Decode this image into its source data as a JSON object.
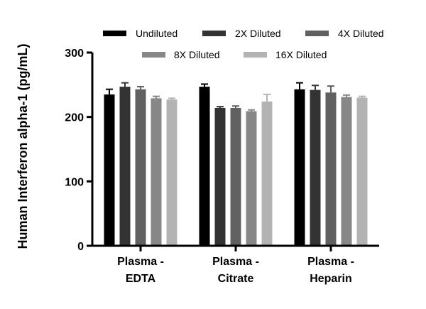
{
  "chart_data": {
    "type": "bar",
    "title": "",
    "xlabel": "",
    "ylabel": "Human Interferon alpha-1 (pg/mL)",
    "ylim": [
      0,
      300
    ],
    "yticks": [
      "0",
      "100",
      "200",
      "300"
    ],
    "categories": [
      [
        "Plasma -",
        "EDTA"
      ],
      [
        "Plasma -",
        "Citrate"
      ],
      [
        "Plasma -",
        "Heparin"
      ]
    ],
    "series": [
      {
        "name": "Undiluted",
        "color": "#000000",
        "values": [
          235,
          247,
          243
        ]
      },
      {
        "name": "2X Diluted",
        "color": "#333333",
        "values": [
          247,
          214,
          242
        ]
      },
      {
        "name": "4X Diluted",
        "color": "#606060",
        "values": [
          243,
          214,
          238
        ]
      },
      {
        "name": "8X Diluted",
        "color": "#878787",
        "values": [
          229,
          209,
          231
        ]
      },
      {
        "name": "16X Diluted",
        "color": "#b3b3b3",
        "values": [
          227,
          224,
          230
        ]
      }
    ],
    "errors": [
      [
        8,
        6,
        4,
        3,
        2
      ],
      [
        4,
        2,
        3,
        2,
        11
      ],
      [
        10,
        7,
        10,
        3,
        2
      ]
    ],
    "legend": "top",
    "grid": false
  }
}
